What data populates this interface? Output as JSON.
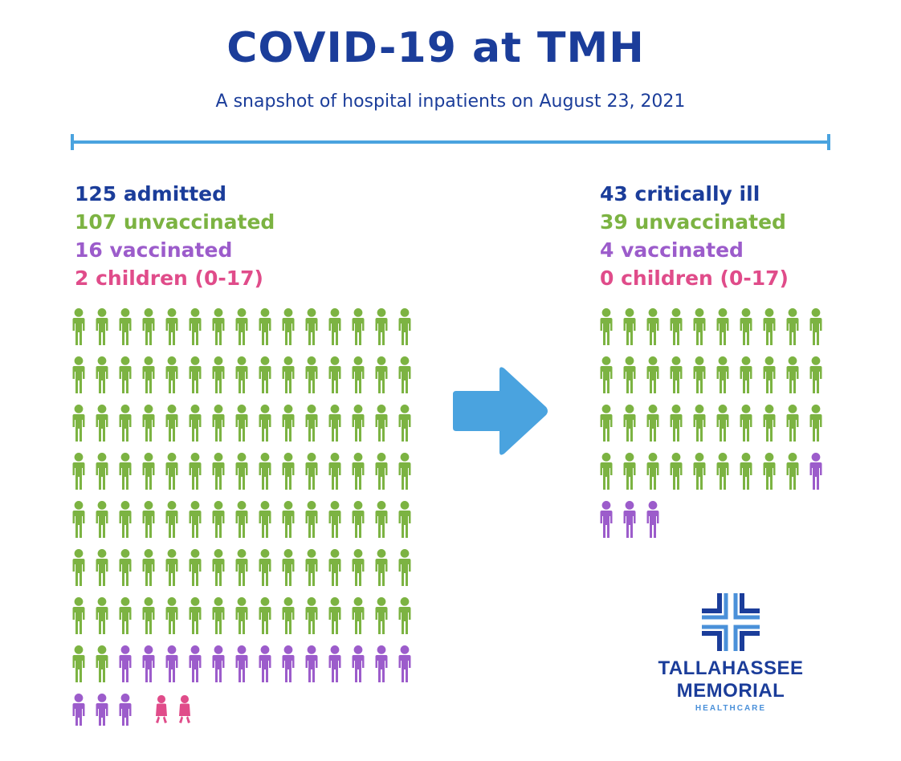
{
  "title": "COVID-19 at TMH",
  "subtitle": "A snapshot of hospital inpatients on August 23, 2021",
  "colors": {
    "title": "#1b3d9a",
    "admitted": "#1b3d9a",
    "unvaccinated": "#7cb342",
    "vaccinated": "#9c5ccb",
    "children": "#e04c8a",
    "accent": "#4aa3df"
  },
  "left": {
    "admitted": "125 admitted",
    "unvaccinated": "107 unvaccinated",
    "vaccinated": "16 vaccinated",
    "children": "2 children (0-17)"
  },
  "right": {
    "critical": "43 critically ill",
    "unvaccinated": "39 unvaccinated",
    "vaccinated": "4 vaccinated",
    "children": "0 children (0-17)"
  },
  "logo": {
    "line1": "TALLAHASSEE",
    "line2": "MEMORIAL",
    "line3": "HEALTHCARE"
  },
  "chart_data": [
    {
      "type": "bar",
      "title": "125 admitted",
      "categories": [
        "unvaccinated",
        "vaccinated",
        "children (0-17)"
      ],
      "values": [
        107,
        16,
        2
      ],
      "icons_per_row": 15
    },
    {
      "type": "bar",
      "title": "43 critically ill",
      "categories": [
        "unvaccinated",
        "vaccinated",
        "children (0-17)"
      ],
      "values": [
        39,
        4,
        0
      ],
      "icons_per_row": 10
    }
  ]
}
